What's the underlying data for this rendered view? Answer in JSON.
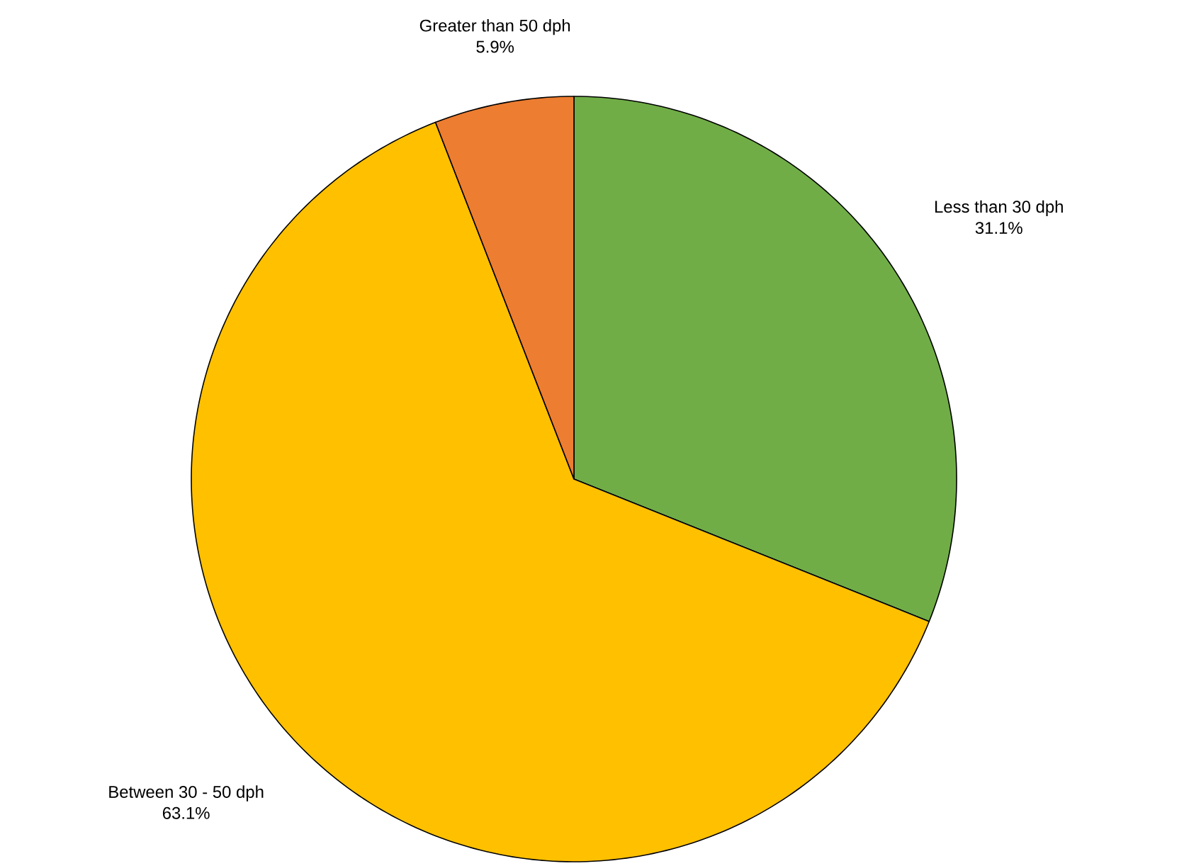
{
  "chart_data": {
    "type": "pie",
    "categories": [
      "Less than 30 dph",
      "Between 30 - 50 dph",
      "Greater than 50 dph"
    ],
    "values": [
      31.1,
      63.1,
      5.9
    ],
    "colors": [
      "#70ad47",
      "#ffc000",
      "#ed7d31"
    ],
    "value_labels": [
      "31.1%",
      "63.1%",
      "5.9%"
    ]
  }
}
